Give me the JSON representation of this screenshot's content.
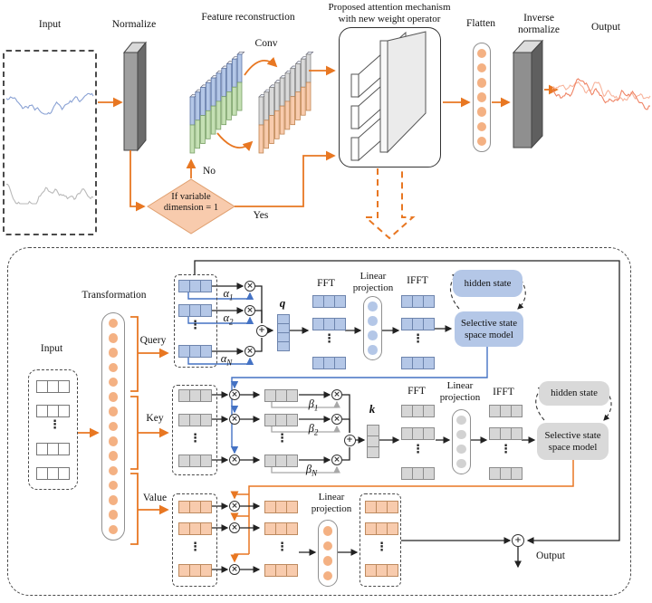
{
  "top": {
    "input_label": "Input",
    "normalize_label": "Normalize",
    "feature_reconstruction_label": "Feature reconstruction",
    "conv_label": "Conv",
    "attention_box_title_line1": "Proposed attention mechanism",
    "attention_box_title_line2": "with new weight operator",
    "flatten_label": "Flatten",
    "inverse_normalize_line1": "Inverse",
    "inverse_normalize_line2": "normalize",
    "output_label": "Output",
    "decision_line1": "If variable",
    "decision_line2": "dimension = 1",
    "no_label": "No",
    "yes_label": "Yes"
  },
  "bottom": {
    "transformation_label": "Transformation",
    "input_label": "Input",
    "query_label": "Query",
    "key_label": "Key",
    "value_label": "Value",
    "alpha_symbol": "α",
    "beta_symbol": "β",
    "subs": [
      "1",
      "2",
      "N"
    ],
    "q_label": "q",
    "k_label": "k",
    "fft_label": "FFT",
    "ifft_label": "IFFT",
    "linear_projection_line1": "Linear",
    "linear_projection_line2": "projection",
    "hidden_state_label": "hidden state",
    "ssm_line1": "Selective state",
    "ssm_line2": "space model",
    "output_label": "Output"
  },
  "shared": {
    "multiply_symbol": "×",
    "add_symbol": "+",
    "vdots": "⋮"
  },
  "colors": {
    "accent_orange": "#e87722",
    "blue_fill": "#b4c7e7",
    "green_fill": "#c5e0b4",
    "gray_fill": "#d9d9d9",
    "peach_fill": "#f8cbad",
    "dot_orange": "#f4b183",
    "blue_line": "#4472c4"
  }
}
